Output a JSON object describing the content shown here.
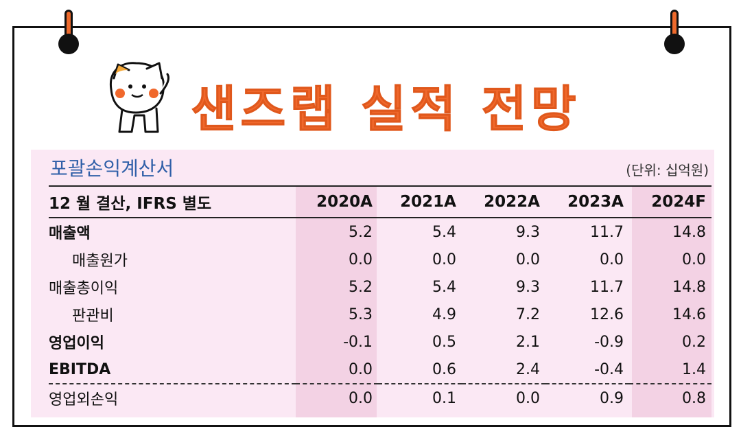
{
  "header": {
    "title": "샌즈랩 실적 전망"
  },
  "table": {
    "caption": "포괄손익계산서",
    "unit": "(단위: 십억원)",
    "label_header": "12 월 결산, IFRS 별도",
    "years": [
      "2020A",
      "2021A",
      "2022A",
      "2023A",
      "2024F"
    ],
    "rows": [
      {
        "label": "매출액",
        "values": [
          "5.2",
          "5.4",
          "9.3",
          "11.7",
          "14.8"
        ]
      },
      {
        "label": "매출원가",
        "values": [
          "0.0",
          "0.0",
          "0.0",
          "0.0",
          "0.0"
        ]
      },
      {
        "label": "매출총이익",
        "values": [
          "5.2",
          "5.4",
          "9.3",
          "11.7",
          "14.8"
        ]
      },
      {
        "label": "판관비",
        "values": [
          "5.3",
          "4.9",
          "7.2",
          "12.6",
          "14.6"
        ]
      },
      {
        "label": "영업이익",
        "values": [
          "-0.1",
          "0.5",
          "2.1",
          "-0.9",
          "0.2"
        ]
      },
      {
        "label": "EBITDA",
        "values": [
          "0.0",
          "0.6",
          "2.4",
          "-0.4",
          "1.4"
        ]
      },
      {
        "label": "영업외손익",
        "values": [
          "0.0",
          "0.1",
          "0.0",
          "0.9",
          "0.8"
        ]
      }
    ]
  },
  "colors": {
    "title": "#f0682c",
    "caption": "#2f5fa8",
    "panel": "#fbe8f4",
    "column_shade": "#f3d2e4"
  }
}
